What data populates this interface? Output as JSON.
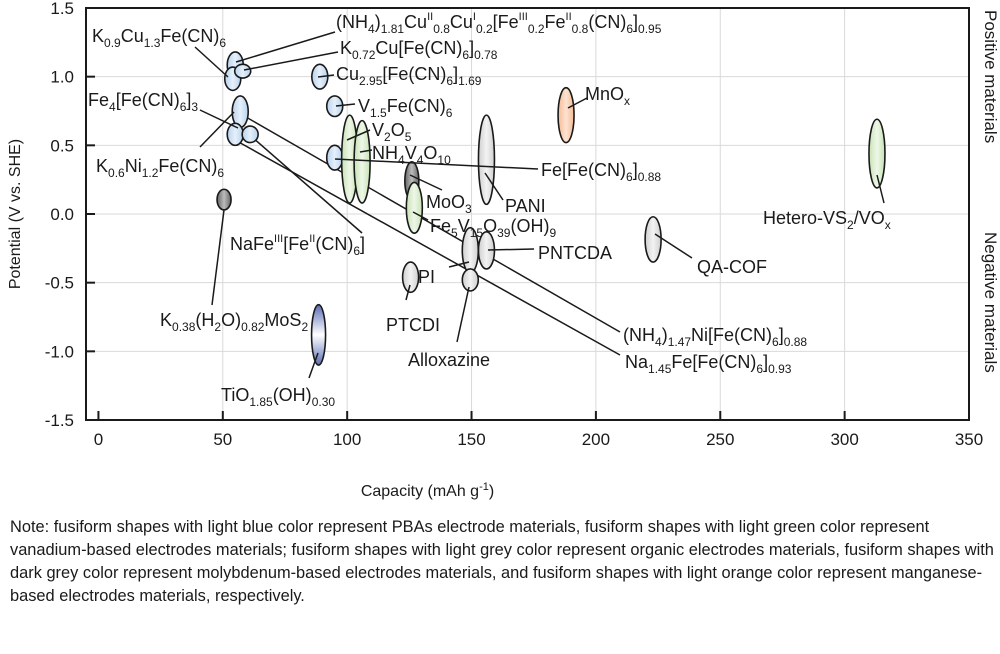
{
  "chart_data": {
    "type": "scatter",
    "xlabel": "Capacity (mAh g",
    "xlabel_sup": "-1",
    "xlabel_end": ")",
    "ylabel": "Potential (V vs. SHE)",
    "xlim": [
      -5,
      350
    ],
    "ylim": [
      -1.5,
      1.5
    ],
    "xticks": [
      "0",
      "50",
      "100",
      "150",
      "200",
      "250",
      "300",
      "350"
    ],
    "yticks": [
      "1.5",
      "1.0",
      "0.5",
      "0.0",
      "-0.5",
      "-1.0",
      "-1.5"
    ],
    "grid": true,
    "side_labels": [
      "Positive materials",
      "Negative materials"
    ],
    "colors": {
      "pba": "#b8d2ee",
      "vanadium": "#c6e2b3",
      "organic": "#dedede",
      "molybdenum": "#7a7a7a",
      "manganese": "#f7b993",
      "titanium": "#5a6db5"
    },
    "materials": [
      {
        "label": [
          [
            "(NH",
            "n"
          ],
          [
            "4",
            "sub"
          ],
          [
            ")",
            "n"
          ],
          [
            "1.81",
            "sub"
          ],
          [
            "Cu",
            "n"
          ],
          [
            "II",
            "sup"
          ],
          [
            "0.8",
            "sub"
          ],
          [
            "Cu",
            "n"
          ],
          [
            "I",
            "sup"
          ],
          [
            "0.2",
            "sub"
          ],
          [
            "[Fe",
            "n"
          ],
          [
            "III",
            "sup"
          ],
          [
            "0.2",
            "sub"
          ],
          [
            "Fe",
            "n"
          ],
          [
            "II",
            "sup"
          ],
          [
            "0.8",
            "sub"
          ],
          [
            "(CN)",
            "n"
          ],
          [
            "6",
            "sub"
          ],
          [
            "]",
            "n"
          ],
          [
            "0.95",
            "sub"
          ]
        ],
        "capacity": 55,
        "potential": [
          0.99,
          1.18
        ],
        "group": "pba"
      },
      {
        "label": [
          [
            "K",
            "n"
          ],
          [
            "0.9",
            "sub"
          ],
          [
            "Cu",
            "n"
          ],
          [
            "1.3",
            "sub"
          ],
          [
            "Fe(CN)",
            "n"
          ],
          [
            "6",
            "sub"
          ]
        ],
        "capacity": 54,
        "potential": [
          0.9,
          1.07
        ],
        "group": "pba"
      },
      {
        "label": [
          [
            "K",
            "n"
          ],
          [
            "0.72",
            "sub"
          ],
          [
            "Cu[Fe(CN)",
            "n"
          ],
          [
            "6",
            "sub"
          ],
          [
            "]",
            "n"
          ],
          [
            "0.78",
            "sub"
          ]
        ],
        "capacity": 58,
        "potential": [
          0.99,
          1.09
        ],
        "group": "pba"
      },
      {
        "label": [
          [
            "Cu",
            "n"
          ],
          [
            "2.95",
            "sub"
          ],
          [
            "[Fe(CN)",
            "n"
          ],
          [
            "6",
            "sub"
          ],
          [
            "]",
            "n"
          ],
          [
            "1.69",
            "sub"
          ]
        ],
        "capacity": 89,
        "potential": [
          0.91,
          1.09
        ],
        "group": "pba"
      },
      {
        "label": [
          [
            "Fe",
            "n"
          ],
          [
            "4",
            "sub"
          ],
          [
            "[Fe(CN)",
            "n"
          ],
          [
            "6",
            "sub"
          ],
          [
            "]",
            "n"
          ],
          [
            "3",
            "sub"
          ]
        ],
        "capacity": 57,
        "potential": [
          0.63,
          0.86
        ],
        "group": "pba"
      },
      {
        "label": [
          [
            "V",
            "n"
          ],
          [
            "1.5",
            "sub"
          ],
          [
            "Fe(CN)",
            "n"
          ],
          [
            "6",
            "sub"
          ]
        ],
        "capacity": 95,
        "potential": [
          0.71,
          0.86
        ],
        "group": "pba"
      },
      {
        "label": [
          [
            "K",
            "n"
          ],
          [
            "0.6",
            "sub"
          ],
          [
            "Ni",
            "n"
          ],
          [
            "1.2",
            "sub"
          ],
          [
            "Fe(CN)",
            "n"
          ],
          [
            "6",
            "sub"
          ]
        ],
        "capacity": 55,
        "potential": [
          0.5,
          0.66
        ],
        "group": "pba"
      },
      {
        "label": [
          [
            "NaFe",
            "n"
          ],
          [
            "III",
            "sup"
          ],
          [
            "[Fe",
            "n"
          ],
          [
            "II",
            "sup"
          ],
          [
            "(CN)",
            "n"
          ],
          [
            "6",
            "sub"
          ],
          [
            "]",
            "n"
          ]
        ],
        "capacity": 61,
        "potential": [
          0.52,
          0.64
        ],
        "group": "pba"
      },
      {
        "label": [
          [
            "Fe[Fe(CN)",
            "n"
          ],
          [
            "6",
            "sub"
          ],
          [
            "]",
            "n"
          ],
          [
            "0.88",
            "sub"
          ]
        ],
        "capacity": 95,
        "potential": [
          0.32,
          0.5
        ],
        "group": "pba"
      },
      {
        "label": [
          [
            "V",
            "n"
          ],
          [
            "2",
            "sub"
          ],
          [
            "O",
            "n"
          ],
          [
            "5",
            "sub"
          ]
        ],
        "capacity": 101,
        "potential": [
          0.08,
          0.72
        ],
        "group": "vanadium"
      },
      {
        "label": [
          [
            "NH",
            "n"
          ],
          [
            "4",
            "sub"
          ],
          [
            "V",
            "n"
          ],
          [
            "4",
            "sub"
          ],
          [
            "O",
            "n"
          ],
          [
            "10",
            "sub"
          ]
        ],
        "capacity": 106,
        "potential": [
          0.08,
          0.68
        ],
        "group": "vanadium"
      },
      {
        "label": [
          [
            "MoO",
            "n"
          ],
          [
            "3",
            "sub"
          ]
        ],
        "capacity": 126,
        "potential": [
          0.1,
          0.38
        ],
        "group": "molybdenum"
      },
      {
        "label": [
          [
            "Fe",
            "n"
          ],
          [
            "5",
            "sub"
          ],
          [
            "V",
            "n"
          ],
          [
            "15",
            "sub"
          ],
          [
            "O",
            "n"
          ],
          [
            "39",
            "sub"
          ],
          [
            "(OH)",
            "n"
          ],
          [
            "9",
            "sub"
          ]
        ],
        "capacity": 127,
        "potential": [
          -0.14,
          0.23
        ],
        "group": "vanadium"
      },
      {
        "label": [
          [
            "PANI",
            "n"
          ]
        ],
        "capacity": 156,
        "potential": [
          0.07,
          0.72
        ],
        "group": "organic"
      },
      {
        "label": [
          [
            "MnO",
            "n"
          ],
          [
            "x",
            "sub"
          ]
        ],
        "capacity": 188,
        "potential": [
          0.52,
          0.92
        ],
        "group": "manganese"
      },
      {
        "label": [
          [
            "Hetero-VS",
            "n"
          ],
          [
            "2",
            "sub"
          ],
          [
            "/VO",
            "n"
          ],
          [
            "x",
            "sub"
          ]
        ],
        "capacity": 313,
        "potential": [
          0.19,
          0.69
        ],
        "group": "vanadium"
      },
      {
        "label": [
          [
            "QA-COF",
            "n"
          ]
        ],
        "capacity": 223,
        "potential": [
          -0.35,
          -0.02
        ],
        "group": "organic"
      },
      {
        "label": [
          [
            "PNTCDA",
            "n"
          ]
        ],
        "capacity": 156,
        "potential": [
          -0.4,
          -0.13
        ],
        "group": "organic"
      },
      {
        "label": [
          [
            "PI",
            "n"
          ]
        ],
        "capacity": 149.5,
        "potential": [
          -0.43,
          -0.1
        ],
        "group": "organic"
      },
      {
        "label": [
          [
            "Alloxazine",
            "n"
          ]
        ],
        "capacity": 149.5,
        "potential": [
          -0.56,
          -0.4
        ],
        "group": "organic"
      },
      {
        "label": [
          [
            "PTCDI",
            "n"
          ]
        ],
        "capacity": 125.5,
        "potential": [
          -0.57,
          -0.35
        ],
        "group": "organic"
      },
      {
        "label": [
          [
            "K",
            "n"
          ],
          [
            "0.38",
            "sub"
          ],
          [
            "(H",
            "n"
          ],
          [
            "2",
            "sub"
          ],
          [
            "O)",
            "n"
          ],
          [
            "0.82",
            "sub"
          ],
          [
            "MoS",
            "n"
          ],
          [
            "2",
            "sub"
          ]
        ],
        "capacity": 50.5,
        "potential": [
          0.03,
          0.18
        ],
        "group": "molybdenum"
      },
      {
        "label": [
          [
            "TiO",
            "n"
          ],
          [
            "1.85",
            "sub"
          ],
          [
            "(OH)",
            "n"
          ],
          [
            "0.30",
            "sub"
          ]
        ],
        "capacity": 88.5,
        "potential": [
          -1.1,
          -0.66
        ],
        "group": "titanium"
      },
      {
        "label": [
          [
            "(NH",
            "n"
          ],
          [
            "4",
            "sub"
          ],
          [
            ")",
            "n"
          ],
          [
            "1.47",
            "sub"
          ],
          [
            "Ni[Fe(CN)",
            "n"
          ],
          [
            "6",
            "sub"
          ],
          [
            "]",
            "n"
          ],
          [
            "0.88",
            "sub"
          ]
        ],
        "capacity": null,
        "potential": null,
        "group": "pba"
      },
      {
        "label": [
          [
            "Na",
            "n"
          ],
          [
            "1.45",
            "sub"
          ],
          [
            "Fe[Fe(CN)",
            "n"
          ],
          [
            "6",
            "sub"
          ],
          [
            "]",
            "n"
          ],
          [
            "0.93",
            "sub"
          ]
        ],
        "capacity": null,
        "potential": null,
        "group": "pba"
      }
    ]
  },
  "note": "Note: fusiform shapes with light blue color represent PBAs electrode materials, fusiform shapes with light green color represent vanadium-based electrodes materials; fusiform shapes with light grey color represent organic electrodes materials, fusiform shapes with dark grey color represent molybdenum-based electrodes materials, and fusiform shapes with light orange color represent manganese-based electrodes materials, respectively."
}
